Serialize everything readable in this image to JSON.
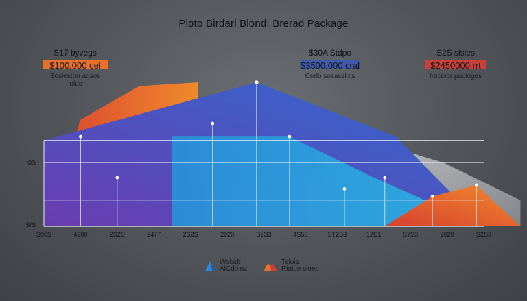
{
  "title": "Ploto Birdarl Blond: Brerad Package",
  "stats": [
    {
      "label": "S17 byvegs",
      "value": "$100,000 cel",
      "sub": "Sosleston adsos iolds",
      "color": "#e8702a"
    },
    {
      "label": "$30A Stdpo",
      "value": "$3500,000 cral",
      "sub": "Crelb sosasslios",
      "color": "#3f5aa8"
    },
    {
      "label": "S2S sisies",
      "value": "$2450000 rrt",
      "sub": "frocioor paokiges",
      "color": "#c8403a"
    }
  ],
  "chart_data": {
    "type": "area",
    "title": "Ploto Birdarl Blond: Brerad Package",
    "x_tick_labels": [
      "S00S",
      "4200",
      "2S2S",
      "2477",
      "2S2S",
      "2020",
      "S2S3",
      "4S50",
      "ST2S3",
      "12C1",
      "S7S3",
      "2020",
      "S2S3"
    ],
    "y_tick_labels": [
      "t0S",
      "S/S"
    ],
    "colors": {
      "red": "#d8402f",
      "orange": "#f08a2c",
      "blue": "#2f6ad0",
      "purple": "#6a3cb0",
      "cyan": "#2cb0e0",
      "gray": "#d8d8d8"
    },
    "series": [
      {
        "x": [
          0,
          1,
          2.6,
          4.2
        ],
        "y": [
          0,
          5.7,
          7.5,
          7.7
        ]
      },
      {
        "x": [
          0,
          5.8,
          9.6,
          12
        ],
        "y": [
          4.6,
          7.7,
          4.8,
          0
        ]
      },
      {
        "x": [
          3.5,
          6.7,
          8.9,
          12
        ],
        "y": [
          4.8,
          4.8,
          2.7,
          0
        ]
      },
      {
        "x": [
          9.3,
          10.6,
          11.8,
          13
        ],
        "y": [
          0,
          1.6,
          2.2,
          0
        ]
      },
      {
        "x": [
          5.8,
          7.5,
          10.9,
          13
        ],
        "y": [
          7.7,
          5.4,
          3.4,
          1.4
        ]
      }
    ]
  },
  "legend": [
    {
      "icon": "blue-shape-icon",
      "line1": "Wsbidt",
      "line2": "AlCdoinz",
      "color": "#2e86e0"
    },
    {
      "icon": "orange-shape-icon",
      "line1": "Teloia",
      "line2": "Rialue sioes",
      "color": "#e8702a"
    }
  ]
}
